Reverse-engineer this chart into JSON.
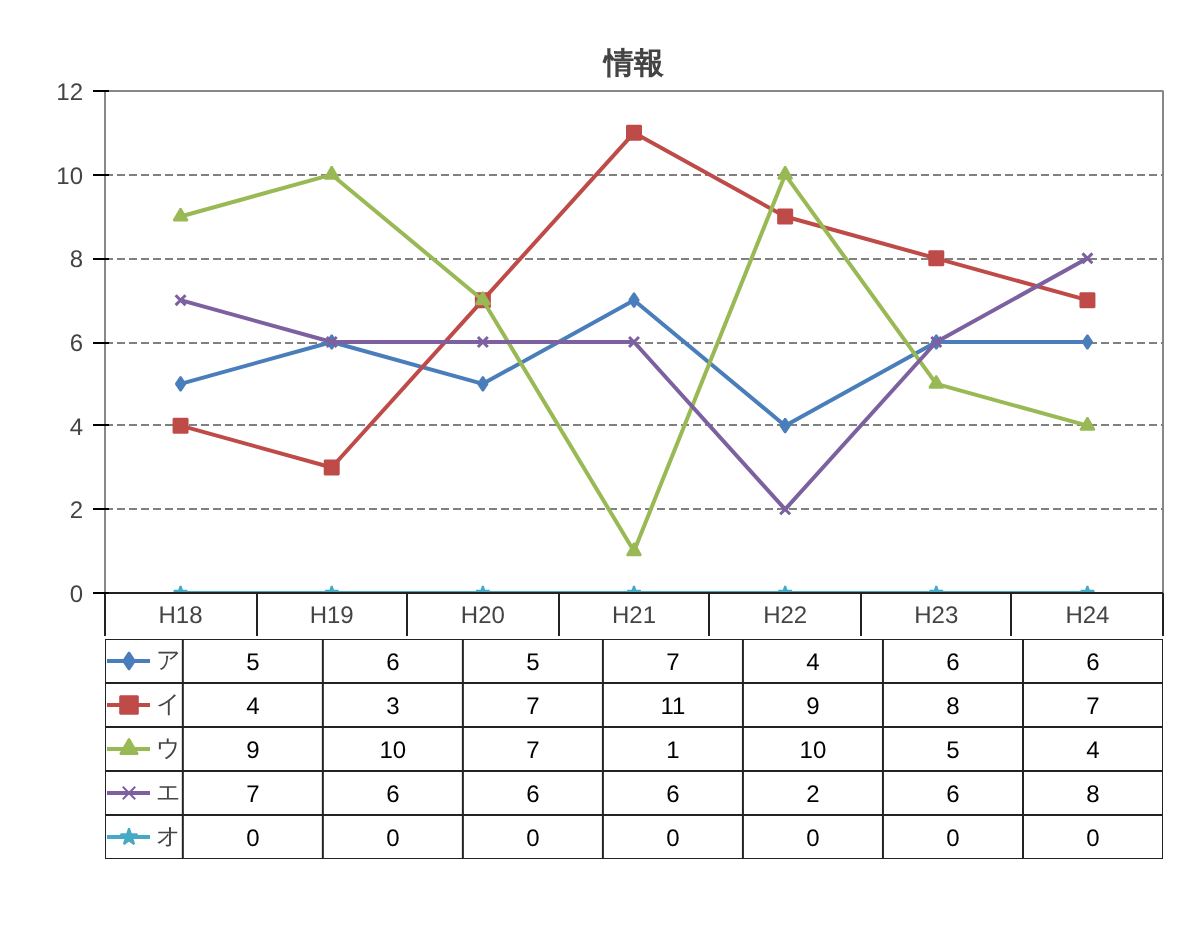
{
  "chart_data": {
    "type": "line",
    "title": "情報",
    "categories": [
      "H18",
      "H19",
      "H20",
      "H21",
      "H22",
      "H23",
      "H24"
    ],
    "series": [
      {
        "name": "ア",
        "color": "#4a7ebb",
        "marker": "diamond",
        "values": [
          5,
          6,
          5,
          7,
          4,
          6,
          6
        ]
      },
      {
        "name": "イ",
        "color": "#be4b48",
        "marker": "square",
        "values": [
          4,
          3,
          7,
          11,
          9,
          8,
          7
        ]
      },
      {
        "name": "ウ",
        "color": "#98b954",
        "marker": "triangle",
        "values": [
          9,
          10,
          7,
          1,
          10,
          5,
          4
        ]
      },
      {
        "name": "エ",
        "color": "#7d60a0",
        "marker": "cross",
        "values": [
          7,
          6,
          6,
          6,
          2,
          6,
          8
        ]
      },
      {
        "name": "オ",
        "color": "#46aac5",
        "marker": "star",
        "values": [
          0,
          0,
          0,
          0,
          0,
          0,
          0
        ]
      }
    ],
    "ylim": [
      0,
      12
    ],
    "yticks": [
      0,
      2,
      4,
      6,
      8,
      10,
      12
    ],
    "grid": "y",
    "legend": "bottom left",
    "data_labels": true
  }
}
